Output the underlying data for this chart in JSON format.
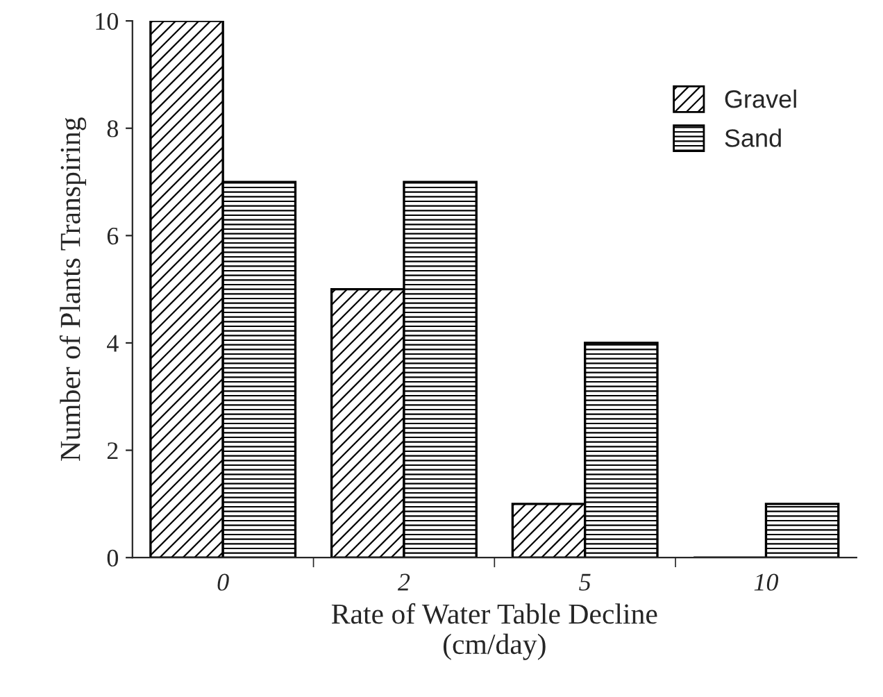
{
  "chart_data": {
    "type": "bar",
    "xlabel": "Rate of Water Table Decline\n(cm/day)",
    "ylabel": "Number of Plants Transpiring",
    "categories": [
      "0",
      "2",
      "5",
      "10"
    ],
    "series": [
      {
        "name": "Gravel",
        "color": "#000000",
        "values": [
          10,
          5,
          1,
          0
        ]
      },
      {
        "name": "Sand",
        "color": "#000000",
        "values": [
          7,
          7,
          4,
          1
        ]
      }
    ],
    "ylim": [
      0,
      10
    ],
    "yticks": [
      0,
      2,
      4,
      6,
      8,
      10
    ],
    "grid": false,
    "legend": "top right"
  }
}
